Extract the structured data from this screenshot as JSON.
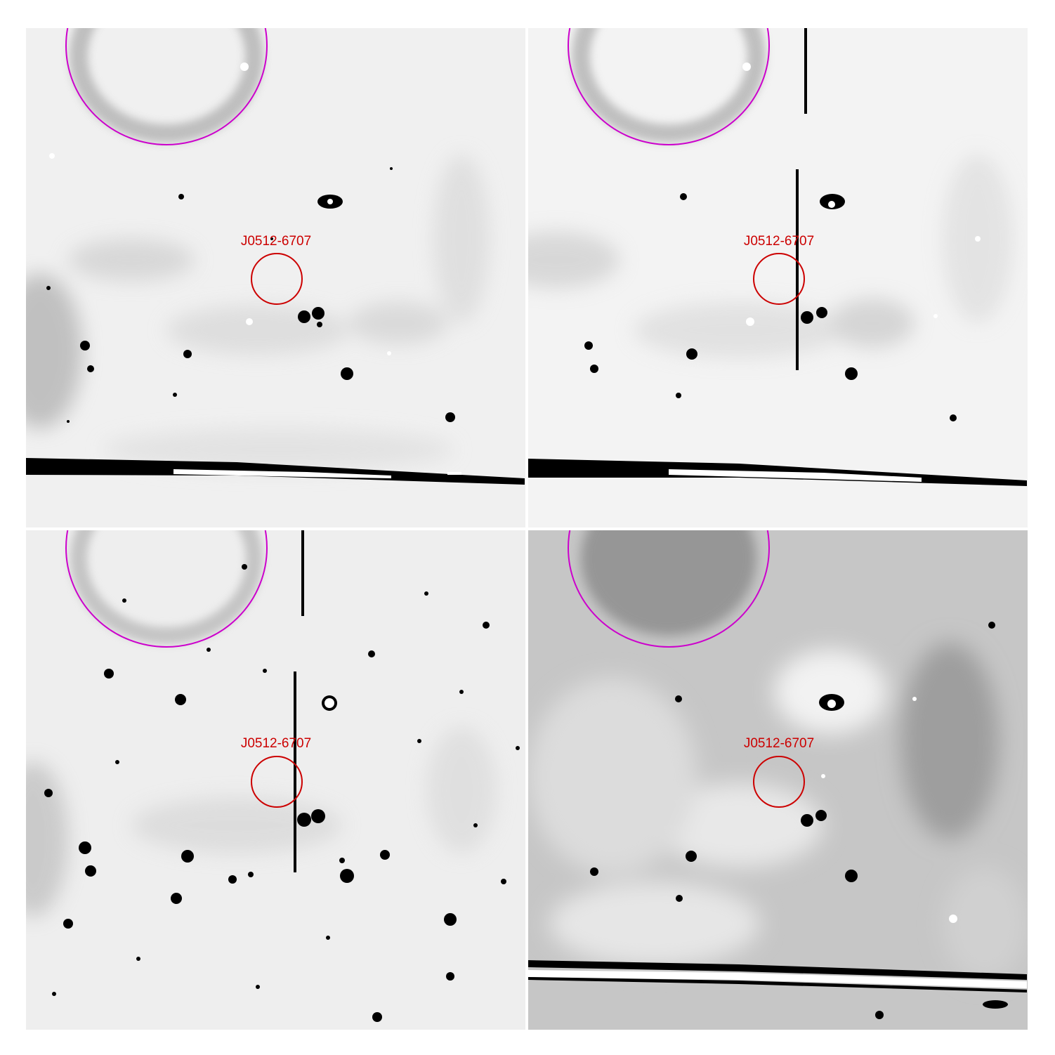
{
  "figure": {
    "panels": [
      {
        "id": "top-left",
        "source_label": "J0512-6707"
      },
      {
        "id": "top-right",
        "source_label": "J0512-6707"
      },
      {
        "id": "bottom-left",
        "source_label": "J0512-6707"
      },
      {
        "id": "bottom-right",
        "source_label": "J0512-6707"
      }
    ]
  },
  "colors": {
    "source_circle": "#cc0000",
    "snr_ellipse": "#cc00cc",
    "background_light": "#f2f2f2",
    "background_mid": "#bdbdbd",
    "mark_dark": "#000000"
  }
}
